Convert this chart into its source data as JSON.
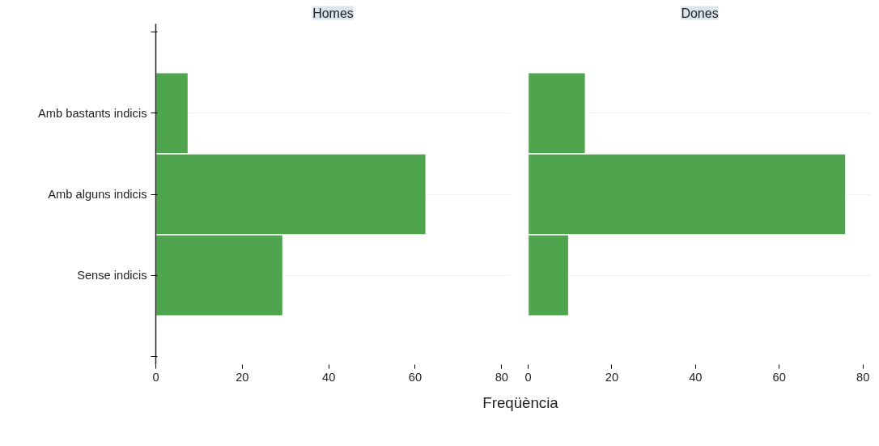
{
  "chart_data": [
    {
      "type": "bar",
      "orientation": "horizontal",
      "title": "Homes",
      "xlabel": "Freqüència",
      "categories": [
        "Amb bastants indicis",
        "Amb alguns indicis",
        "Sense indicis"
      ],
      "values": [
        7.5,
        62.5,
        29.4
      ],
      "color": "#4ea54e",
      "xlim": [
        0,
        82
      ],
      "xticks": [
        0,
        20,
        40,
        60,
        80
      ],
      "grid": "y"
    },
    {
      "type": "bar",
      "orientation": "horizontal",
      "title": "Dones",
      "categories": [
        null,
        null,
        null
      ],
      "values": [
        13.7,
        75.9,
        9.7
      ],
      "color": "#4ea54e",
      "xlim": [
        0,
        82
      ],
      "xticks": [
        0,
        20,
        40,
        60,
        80
      ],
      "grid": "y",
      "tick_labels": "x"
    }
  ]
}
